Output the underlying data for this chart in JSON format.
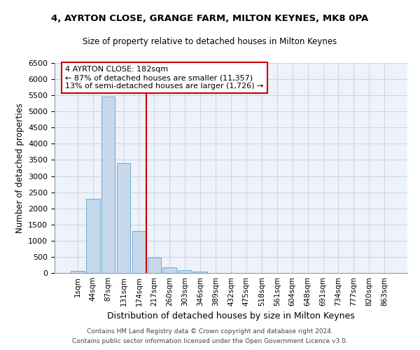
{
  "title1": "4, AYRTON CLOSE, GRANGE FARM, MILTON KEYNES, MK8 0PA",
  "title2": "Size of property relative to detached houses in Milton Keynes",
  "xlabel": "Distribution of detached houses by size in Milton Keynes",
  "ylabel": "Number of detached properties",
  "categories": [
    "1sqm",
    "44sqm",
    "87sqm",
    "131sqm",
    "174sqm",
    "217sqm",
    "260sqm",
    "303sqm",
    "346sqm",
    "389sqm",
    "432sqm",
    "475sqm",
    "518sqm",
    "561sqm",
    "604sqm",
    "648sqm",
    "691sqm",
    "734sqm",
    "777sqm",
    "820sqm",
    "863sqm"
  ],
  "values": [
    60,
    2300,
    5450,
    3400,
    1300,
    480,
    180,
    80,
    50,
    0,
    0,
    0,
    0,
    0,
    0,
    0,
    0,
    0,
    0,
    0,
    0
  ],
  "bar_color": "#c8d8eb",
  "bar_edge_color": "#6aaad4",
  "grid_color": "#c8d4e8",
  "background_color": "#eef2f9",
  "vline_color": "#cc0000",
  "annotation_text": "4 AYRTON CLOSE: 182sqm\n← 87% of detached houses are smaller (11,357)\n13% of semi-detached houses are larger (1,726) →",
  "annotation_box_color": "#cc0000",
  "ylim": [
    0,
    6500
  ],
  "yticks": [
    0,
    500,
    1000,
    1500,
    2000,
    2500,
    3000,
    3500,
    4000,
    4500,
    5000,
    5500,
    6000,
    6500
  ],
  "footer1": "Contains HM Land Registry data © Crown copyright and database right 2024.",
  "footer2": "Contains public sector information licensed under the Open Government Licence v3.0."
}
